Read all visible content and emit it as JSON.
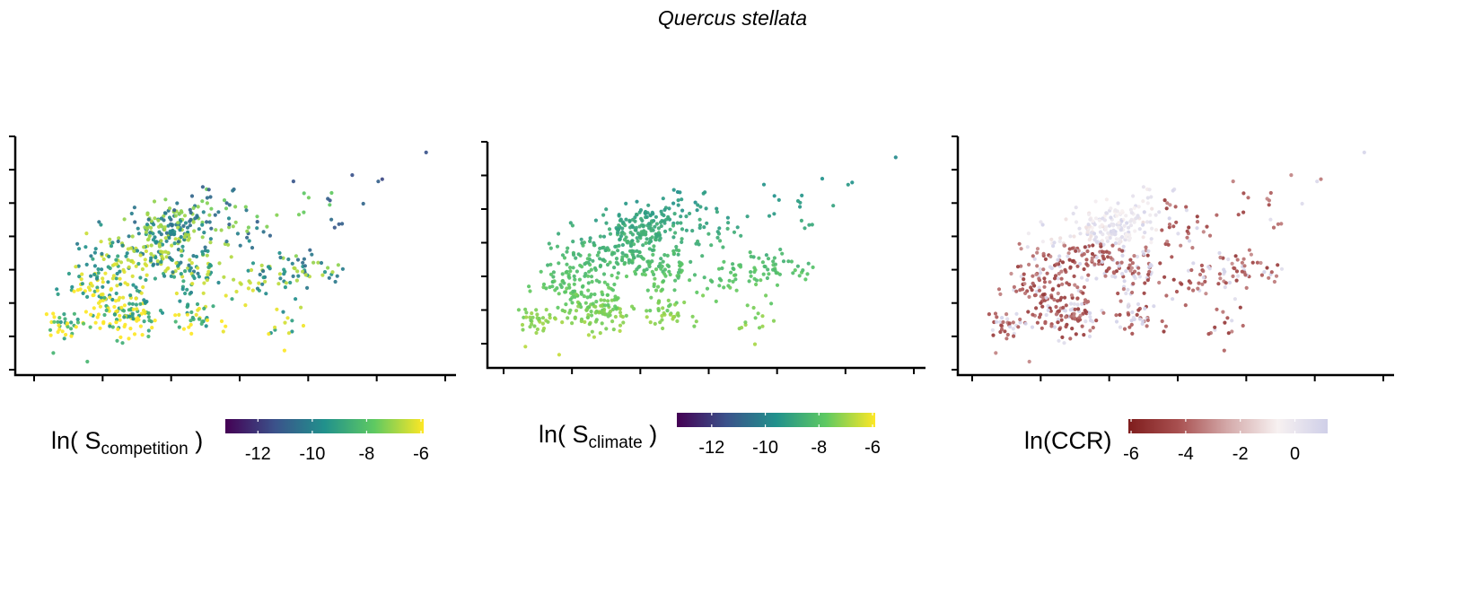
{
  "figure": {
    "title": "Quercus stellata"
  },
  "chart_data": [
    {
      "type": "scatter",
      "panel": "competition",
      "x_axis": {
        "tick_count": 7,
        "tick_labels": []
      },
      "y_axis": {
        "tick_count": 8,
        "tick_labels": []
      },
      "legend": {
        "label_prefix": "ln( S",
        "label_sub": "competition",
        "label_suffix": " )",
        "colormap": [
          "#440154",
          "#3b528b",
          "#21918c",
          "#5ec962",
          "#fde725"
        ],
        "range": [
          -13.2,
          -5.9
        ],
        "ticks": [
          -12,
          -10,
          -8,
          -6
        ],
        "tick_labels": [
          "-12",
          "-10",
          "-8",
          "-6"
        ],
        "placement": "below"
      }
    },
    {
      "type": "scatter",
      "panel": "climate",
      "x_axis": {
        "tick_count": 7,
        "tick_labels": []
      },
      "y_axis": {
        "tick_count": 7,
        "tick_labels": []
      },
      "legend": {
        "label_prefix": "ln( S",
        "label_sub": "climate",
        "label_suffix": " )",
        "colormap": [
          "#440154",
          "#3b528b",
          "#21918c",
          "#5ec962",
          "#fde725"
        ],
        "range": [
          -13.3,
          -5.9
        ],
        "ticks": [
          -12,
          -10,
          -8,
          -6
        ],
        "tick_labels": [
          "-12",
          "-10",
          "-8",
          "-6"
        ],
        "placement": "below"
      }
    },
    {
      "type": "scatter",
      "panel": "CCR",
      "x_axis": {
        "tick_count": 7,
        "tick_labels": []
      },
      "y_axis": {
        "tick_count": 8,
        "tick_labels": []
      },
      "legend": {
        "label_prefix": "ln(CCR)",
        "label_sub": "",
        "label_suffix": "",
        "colormap": [
          "#7f1d1d",
          "#a85050",
          "#d4aaaa",
          "#f7f1f1",
          "#cfcfe8"
        ],
        "range": [
          -6.1,
          1.2
        ],
        "ticks": [
          -6,
          -4,
          -2,
          0
        ],
        "tick_labels": [
          "-6",
          "-4",
          "-2",
          "0"
        ],
        "placement": "below"
      }
    }
  ]
}
